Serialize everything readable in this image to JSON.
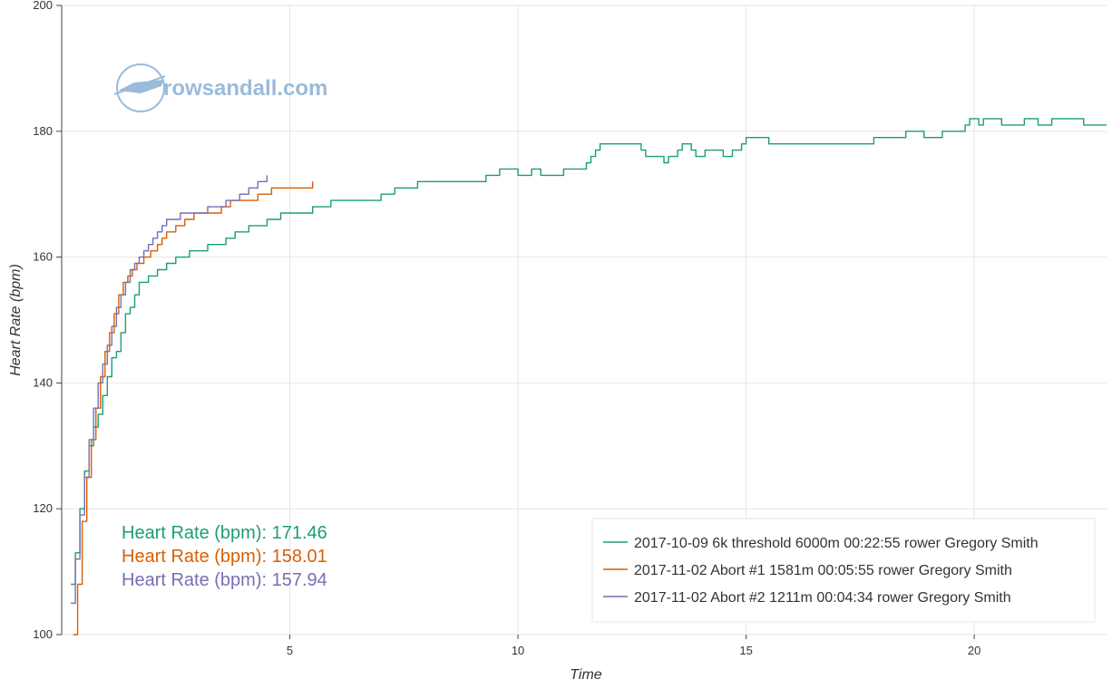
{
  "watermark": {
    "text": "rowsandall.com",
    "icon": "rowing-shell-logo-icon",
    "color": "#8fb5d6"
  },
  "annotations": [
    {
      "label": "Heart Rate (bpm): 171.46",
      "color": "#1b9e77"
    },
    {
      "label": "Heart Rate (bpm): 158.01",
      "color": "#d95f02"
    },
    {
      "label": "Heart Rate (bpm): 157.94",
      "color": "#7570b3"
    }
  ],
  "chart_data": {
    "type": "line",
    "title": "",
    "xlabel": "Time",
    "ylabel": "Heart Rate (bpm)",
    "xlim": [
      0,
      22.9
    ],
    "ylim": [
      100,
      200
    ],
    "xticks": [
      5,
      10,
      15,
      20
    ],
    "yticks": [
      100,
      120,
      140,
      160,
      180,
      200
    ],
    "grid": true,
    "legend_position": "bottom-right",
    "series": [
      {
        "name": "2017-10-09 6k threshold 6000m 00:22:55 rower Gregory Smith",
        "color": "#1b9e77",
        "points": [
          [
            0.2,
            108
          ],
          [
            0.3,
            113
          ],
          [
            0.4,
            120
          ],
          [
            0.5,
            126
          ],
          [
            0.6,
            130
          ],
          [
            0.7,
            133
          ],
          [
            0.8,
            135
          ],
          [
            0.9,
            138
          ],
          [
            1.0,
            141
          ],
          [
            1.1,
            144
          ],
          [
            1.2,
            145
          ],
          [
            1.3,
            148
          ],
          [
            1.4,
            151
          ],
          [
            1.5,
            152
          ],
          [
            1.6,
            154
          ],
          [
            1.7,
            156
          ],
          [
            1.9,
            157
          ],
          [
            2.1,
            158
          ],
          [
            2.3,
            159
          ],
          [
            2.5,
            160
          ],
          [
            2.8,
            161
          ],
          [
            3.2,
            162
          ],
          [
            3.6,
            163
          ],
          [
            3.8,
            164
          ],
          [
            4.1,
            165
          ],
          [
            4.5,
            166
          ],
          [
            4.8,
            167
          ],
          [
            5.5,
            168
          ],
          [
            5.9,
            169
          ],
          [
            7.0,
            170
          ],
          [
            7.3,
            171
          ],
          [
            7.8,
            172
          ],
          [
            9.3,
            173
          ],
          [
            9.6,
            174
          ],
          [
            10.0,
            173
          ],
          [
            10.3,
            174
          ],
          [
            10.5,
            173
          ],
          [
            11.0,
            174
          ],
          [
            11.5,
            175
          ],
          [
            11.6,
            176
          ],
          [
            11.7,
            177
          ],
          [
            11.8,
            178
          ],
          [
            12.7,
            177
          ],
          [
            12.8,
            176
          ],
          [
            13.2,
            175
          ],
          [
            13.3,
            176
          ],
          [
            13.5,
            177
          ],
          [
            13.6,
            178
          ],
          [
            13.8,
            177
          ],
          [
            13.9,
            176
          ],
          [
            14.1,
            177
          ],
          [
            14.5,
            176
          ],
          [
            14.7,
            177
          ],
          [
            14.9,
            178
          ],
          [
            15.0,
            179
          ],
          [
            15.5,
            178
          ],
          [
            17.8,
            179
          ],
          [
            18.5,
            180
          ],
          [
            18.9,
            179
          ],
          [
            19.3,
            180
          ],
          [
            19.8,
            181
          ],
          [
            19.9,
            182
          ],
          [
            20.1,
            181
          ],
          [
            20.2,
            182
          ],
          [
            20.6,
            181
          ],
          [
            21.1,
            182
          ],
          [
            21.4,
            181
          ],
          [
            21.7,
            182
          ],
          [
            22.4,
            181
          ],
          [
            22.9,
            181
          ]
        ]
      },
      {
        "name": "2017-11-02 Abort #1 1581m 00:05:55 rower Gregory Smith",
        "color": "#d95f02",
        "points": [
          [
            0.25,
            100
          ],
          [
            0.35,
            108
          ],
          [
            0.45,
            118
          ],
          [
            0.55,
            125
          ],
          [
            0.65,
            131
          ],
          [
            0.75,
            136
          ],
          [
            0.85,
            141
          ],
          [
            0.95,
            145
          ],
          [
            1.05,
            148
          ],
          [
            1.15,
            151
          ],
          [
            1.25,
            154
          ],
          [
            1.35,
            156
          ],
          [
            1.45,
            157
          ],
          [
            1.55,
            158
          ],
          [
            1.65,
            159
          ],
          [
            1.8,
            160
          ],
          [
            1.95,
            161
          ],
          [
            2.1,
            162
          ],
          [
            2.2,
            163
          ],
          [
            2.3,
            164
          ],
          [
            2.5,
            165
          ],
          [
            2.7,
            166
          ],
          [
            2.9,
            167
          ],
          [
            3.2,
            167
          ],
          [
            3.5,
            168
          ],
          [
            3.7,
            169
          ],
          [
            4.3,
            170
          ],
          [
            4.6,
            171
          ],
          [
            5.0,
            171
          ],
          [
            5.5,
            172
          ]
        ]
      },
      {
        "name": "2017-11-02 Abort #2 1211m 00:04:34 rower Gregory Smith",
        "color": "#7570b3",
        "points": [
          [
            0.2,
            105
          ],
          [
            0.3,
            112
          ],
          [
            0.4,
            119
          ],
          [
            0.5,
            125
          ],
          [
            0.6,
            131
          ],
          [
            0.7,
            136
          ],
          [
            0.8,
            140
          ],
          [
            0.9,
            143
          ],
          [
            1.0,
            146
          ],
          [
            1.1,
            149
          ],
          [
            1.2,
            152
          ],
          [
            1.3,
            154
          ],
          [
            1.4,
            156
          ],
          [
            1.5,
            158
          ],
          [
            1.6,
            159
          ],
          [
            1.7,
            160
          ],
          [
            1.8,
            161
          ],
          [
            1.9,
            162
          ],
          [
            2.0,
            163
          ],
          [
            2.1,
            164
          ],
          [
            2.2,
            165
          ],
          [
            2.3,
            166
          ],
          [
            2.5,
            166
          ],
          [
            2.6,
            167
          ],
          [
            3.0,
            167
          ],
          [
            3.2,
            168
          ],
          [
            3.6,
            169
          ],
          [
            3.9,
            170
          ],
          [
            4.1,
            171
          ],
          [
            4.3,
            172
          ],
          [
            4.5,
            173
          ]
        ]
      }
    ]
  }
}
